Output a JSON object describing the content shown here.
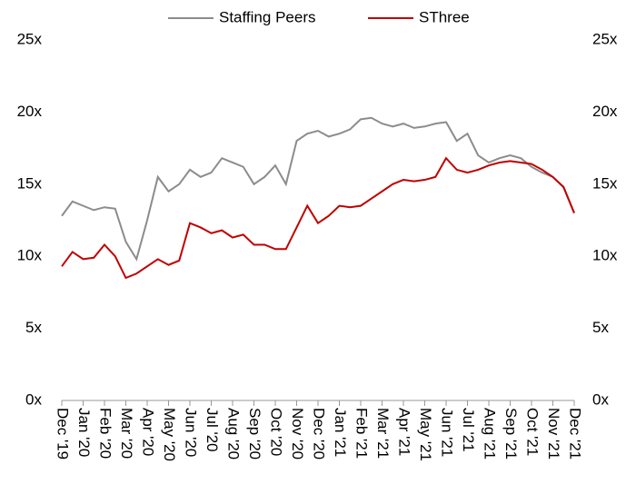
{
  "chart_data": {
    "type": "line",
    "x": [
      0,
      0.5,
      1,
      1.5,
      2,
      2.5,
      3,
      3.5,
      4,
      4.5,
      5,
      5.5,
      6,
      6.5,
      7,
      7.5,
      8,
      8.5,
      9,
      9.5,
      10,
      10.5,
      11,
      11.5,
      12,
      12.5,
      13,
      13.5,
      14,
      14.5,
      15,
      15.5,
      16,
      16.5,
      17,
      17.5,
      18,
      18.5,
      19,
      19.5,
      20,
      20.5,
      21,
      21.5,
      22,
      22.5,
      23,
      23.5,
      24
    ],
    "xlim": [
      0,
      24
    ],
    "xticks": [
      {
        "value": 0,
        "label": "Dec '19"
      },
      {
        "value": 1,
        "label": "Jan '20"
      },
      {
        "value": 2,
        "label": "Feb '20"
      },
      {
        "value": 3,
        "label": "Mar '20"
      },
      {
        "value": 4,
        "label": "Apr '20"
      },
      {
        "value": 5,
        "label": "May '20"
      },
      {
        "value": 6,
        "label": "Jun '20"
      },
      {
        "value": 7,
        "label": "Jul '20"
      },
      {
        "value": 8,
        "label": "Aug '20"
      },
      {
        "value": 9,
        "label": "Sep '20"
      },
      {
        "value": 10,
        "label": "Oct '20"
      },
      {
        "value": 11,
        "label": "Nov '20"
      },
      {
        "value": 12,
        "label": "Dec '20"
      },
      {
        "value": 13,
        "label": "Jan '21"
      },
      {
        "value": 14,
        "label": "Feb '21"
      },
      {
        "value": 15,
        "label": "Mar '21"
      },
      {
        "value": 16,
        "label": "Apr '21"
      },
      {
        "value": 17,
        "label": "May '21"
      },
      {
        "value": 18,
        "label": "Jun '21"
      },
      {
        "value": 19,
        "label": "Jul '21"
      },
      {
        "value": 20,
        "label": "Aug '21"
      },
      {
        "value": 21,
        "label": "Sep '21"
      },
      {
        "value": 22,
        "label": "Oct '21"
      },
      {
        "value": 23,
        "label": "Nov '21"
      },
      {
        "value": 24,
        "label": "Dec '21"
      }
    ],
    "ylim": [
      0,
      25
    ],
    "yticks": [
      {
        "value": 0,
        "label": "0x"
      },
      {
        "value": 5,
        "label": "5x"
      },
      {
        "value": 10,
        "label": "10x"
      },
      {
        "value": 15,
        "label": "15x"
      },
      {
        "value": 20,
        "label": "20x"
      },
      {
        "value": 25,
        "label": "25x"
      }
    ],
    "y2lim": [
      0,
      25
    ],
    "y2ticks": [
      {
        "value": 0,
        "label": "0x"
      },
      {
        "value": 5,
        "label": "5x"
      },
      {
        "value": 10,
        "label": "10x"
      },
      {
        "value": 15,
        "label": "15x"
      },
      {
        "value": 20,
        "label": "20x"
      },
      {
        "value": 25,
        "label": "25x"
      }
    ],
    "grid": false,
    "legend": "top",
    "series": [
      {
        "name": "Staffing Peers",
        "color": "#8c8c8c",
        "values": [
          12.8,
          13.8,
          13.5,
          13.2,
          13.4,
          13.3,
          11.0,
          9.8,
          12.5,
          15.5,
          14.5,
          15.0,
          16.0,
          15.5,
          15.8,
          16.8,
          16.5,
          16.2,
          15.0,
          15.5,
          16.3,
          15.0,
          18.0,
          18.5,
          18.7,
          18.3,
          18.5,
          18.8,
          19.5,
          19.6,
          19.2,
          19.0,
          19.2,
          18.9,
          19.0,
          19.2,
          19.3,
          18.0,
          18.5,
          17.0,
          16.5,
          16.8,
          17.0,
          16.8,
          16.2,
          15.8,
          15.5,
          14.8,
          13.0
        ]
      },
      {
        "name": "SThree",
        "color": "#c00000",
        "values": [
          9.3,
          10.3,
          9.8,
          9.9,
          10.8,
          10.0,
          8.5,
          8.8,
          9.3,
          9.8,
          9.4,
          9.7,
          12.3,
          12.0,
          11.6,
          11.8,
          11.3,
          11.5,
          10.8,
          10.8,
          10.5,
          10.5,
          12.0,
          13.5,
          12.3,
          12.8,
          13.5,
          13.4,
          13.5,
          14.0,
          14.5,
          15.0,
          15.3,
          15.2,
          15.3,
          15.5,
          16.8,
          16.0,
          15.8,
          16.0,
          16.3,
          16.5,
          16.6,
          16.5,
          16.4,
          16.0,
          15.5,
          14.8,
          13.0
        ]
      }
    ]
  }
}
